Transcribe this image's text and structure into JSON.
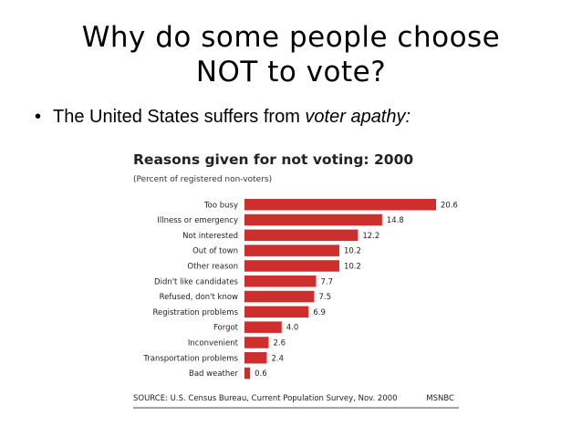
{
  "slide": {
    "title_line1": "Why do some people choose",
    "title_line2": "NOT to vote?",
    "bullet_marker": "•",
    "bullet_text": "The United States suffers from ",
    "bullet_emphasis": "voter apathy:"
  },
  "chart_data": {
    "type": "bar",
    "orientation": "horizontal",
    "title": "Reasons given for not voting: 2000",
    "subtitle": "(Percent of registered non-voters)",
    "categories": [
      "Too busy",
      "Illness or emergency",
      "Not interested",
      "Out of town",
      "Other reason",
      "Didn't like candidates",
      "Refused, don't know",
      "Registration problems",
      "Forgot",
      "Inconvenient",
      "Transportation problems",
      "Bad weather"
    ],
    "values": [
      20.6,
      14.8,
      12.2,
      10.2,
      10.2,
      7.7,
      7.5,
      6.9,
      4.0,
      2.6,
      2.4,
      0.6
    ],
    "value_labels": [
      "20.6",
      "14.8",
      "12.2",
      "10.2",
      "10.2",
      "7.7",
      "7.5",
      "6.9",
      "4.0",
      "2.6",
      "2.4",
      "0.6"
    ],
    "xlim": [
      0,
      20.6
    ],
    "bar_color": "#cf2e2e",
    "grid": false,
    "source": "SOURCE: U.S. Census Bureau, Current Population Survey, Nov. 2000",
    "credit": "MSNBC"
  }
}
